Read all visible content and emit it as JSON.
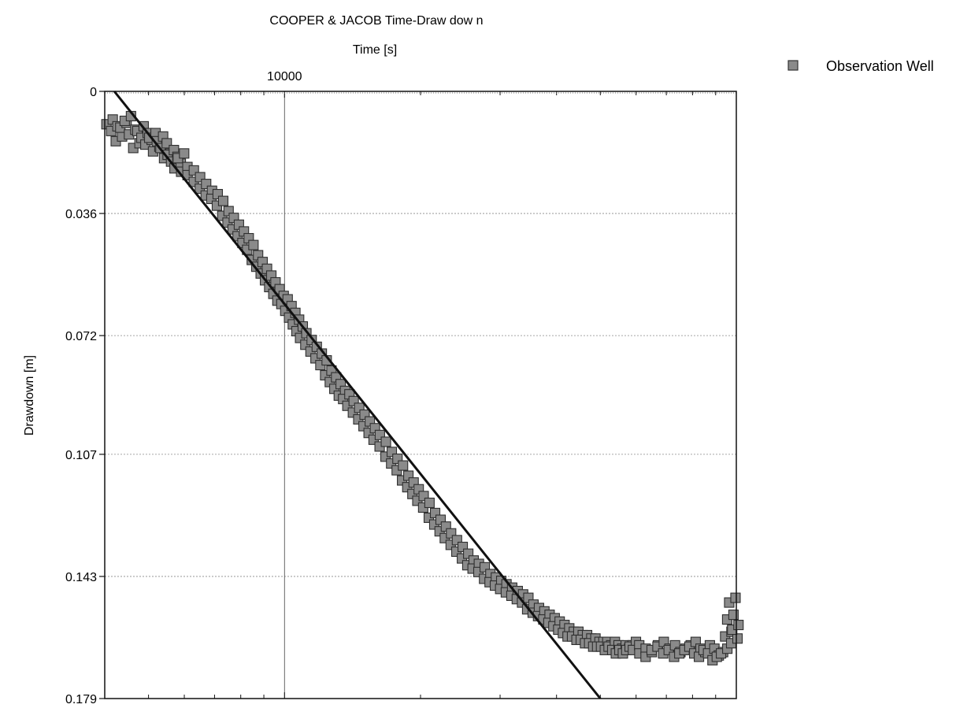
{
  "chart_data": {
    "type": "scatter",
    "title": "COOPER & JACOB Time-Draw dow n",
    "xlabel": "Time [s]",
    "ylabel": "Drawdown [m]",
    "x_scale": "log",
    "xlim": [
      4000,
      100000
    ],
    "ylim": [
      0,
      0.179
    ],
    "y_inverted": true,
    "x_ticks": [
      {
        "value": 10000,
        "label": "10000"
      }
    ],
    "y_ticks": [
      {
        "value": 0,
        "label": "0"
      },
      {
        "value": 0.036,
        "label": "0.036"
      },
      {
        "value": 0.072,
        "label": "0.072"
      },
      {
        "value": 0.107,
        "label": "0.107"
      },
      {
        "value": 0.143,
        "label": "0.143"
      },
      {
        "value": 0.179,
        "label": "0.179"
      }
    ],
    "grid": true,
    "legend_position": "top-right",
    "series": [
      {
        "name": "Observation Well",
        "marker": "square",
        "color": "#7a7a7a",
        "x": [
          4100,
          4200,
          4300,
          4400,
          4500,
          4600,
          4700,
          4800,
          4900,
          5000,
          5100,
          5200,
          5300,
          5400,
          5500,
          5600,
          5700,
          5800,
          5900,
          6000,
          6200,
          6400,
          6600,
          6800,
          7000,
          7200,
          7400,
          7600,
          7800,
          8000,
          8200,
          8400,
          8600,
          8800,
          9000,
          9200,
          9400,
          9600,
          9800,
          10000,
          10200,
          10400,
          10600,
          10800,
          11000,
          11300,
          11600,
          11900,
          12200,
          12500,
          12800,
          13100,
          13400,
          13700,
          14000,
          14400,
          14800,
          15200,
          15600,
          16000,
          16500,
          17000,
          17500,
          18000,
          18500,
          19000,
          19500,
          20000,
          20600,
          21200,
          21800,
          22400,
          23000,
          23700,
          24400,
          25100,
          25800,
          26500,
          27300,
          28100,
          28900,
          29700,
          30500,
          31400,
          32300,
          33200,
          34100,
          35000,
          36000,
          37000,
          38000,
          39000,
          40000,
          41000,
          42000,
          43000,
          44000,
          45000,
          46000,
          47000,
          48000,
          49000,
          50000,
          51000,
          52000,
          53000,
          54000,
          55000,
          56000,
          57000,
          58000,
          59000,
          60000,
          62000,
          64000,
          66000,
          68000,
          70000,
          72000,
          74000,
          76000,
          78000,
          80000,
          82000,
          84000,
          86000,
          88000,
          90000,
          92000,
          94000,
          96000,
          97000,
          98000,
          99000,
          99500
        ],
        "y": [
          0.009,
          0.011,
          0.014,
          0.01,
          0.008,
          0.012,
          0.016,
          0.011,
          0.013,
          0.015,
          0.013,
          0.017,
          0.014,
          0.016,
          0.019,
          0.018,
          0.02,
          0.022,
          0.019,
          0.023,
          0.024,
          0.026,
          0.028,
          0.03,
          0.031,
          0.033,
          0.036,
          0.038,
          0.04,
          0.042,
          0.044,
          0.046,
          0.049,
          0.051,
          0.053,
          0.055,
          0.057,
          0.059,
          0.061,
          0.062,
          0.064,
          0.066,
          0.068,
          0.07,
          0.072,
          0.074,
          0.076,
          0.078,
          0.08,
          0.083,
          0.085,
          0.087,
          0.089,
          0.09,
          0.092,
          0.094,
          0.096,
          0.098,
          0.1,
          0.102,
          0.104,
          0.107,
          0.109,
          0.111,
          0.114,
          0.116,
          0.118,
          0.12,
          0.122,
          0.125,
          0.127,
          0.129,
          0.131,
          0.133,
          0.135,
          0.137,
          0.139,
          0.14,
          0.141,
          0.143,
          0.144,
          0.145,
          0.146,
          0.147,
          0.148,
          0.149,
          0.15,
          0.152,
          0.153,
          0.154,
          0.155,
          0.156,
          0.157,
          0.158,
          0.159,
          0.16,
          0.16,
          0.161,
          0.161,
          0.162,
          0.162,
          0.163,
          0.163,
          0.163,
          0.164,
          0.163,
          0.164,
          0.165,
          0.164,
          0.165,
          0.164,
          0.163,
          0.164,
          0.165,
          0.166,
          0.164,
          0.163,
          0.165,
          0.164,
          0.166,
          0.165,
          0.164,
          0.163,
          0.165,
          0.166,
          0.164,
          0.165,
          0.167,
          0.166,
          0.165,
          0.16,
          0.155,
          0.15,
          0.162,
          0.158
        ]
      }
    ],
    "fit_line": {
      "x": [
        4200,
        50000
      ],
      "y": [
        0,
        0.179
      ]
    }
  }
}
